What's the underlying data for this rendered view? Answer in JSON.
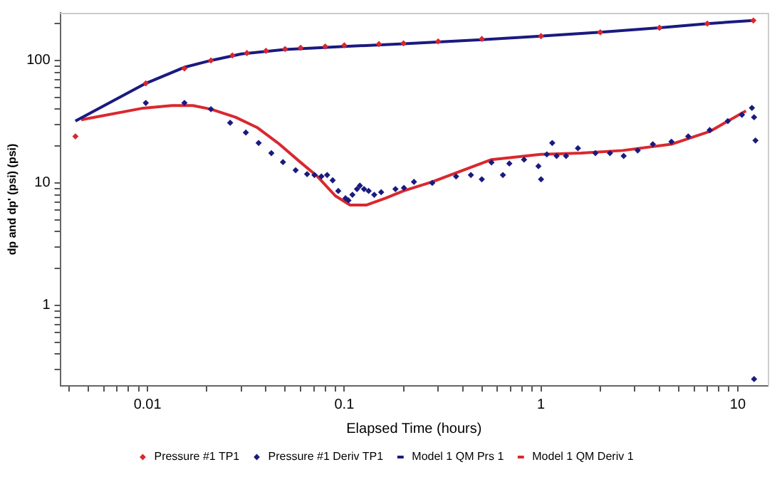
{
  "chart_data": {
    "type": "scatter",
    "xlabel": "Elapsed Time (hours)",
    "ylabel": "dp and dp' (psi) (psi)",
    "log": "xy",
    "grid": false,
    "legend": "bottom",
    "xlim": [
      0.0036,
      14.2
    ],
    "ylim": [
      0.22,
      245
    ],
    "xticks": [
      {
        "value": 0.004,
        "label": null
      },
      {
        "value": 0.005,
        "label": null
      },
      {
        "value": 0.006,
        "label": null
      },
      {
        "value": 0.007,
        "label": null
      },
      {
        "value": 0.008,
        "label": null
      },
      {
        "value": 0.009,
        "label": null
      },
      0.01,
      {
        "value": 0.02,
        "label": null
      },
      {
        "value": 0.03,
        "label": null
      },
      {
        "value": 0.04,
        "label": null
      },
      {
        "value": 0.05,
        "label": null
      },
      {
        "value": 0.06,
        "label": null
      },
      {
        "value": 0.07,
        "label": null
      },
      {
        "value": 0.08,
        "label": null
      },
      {
        "value": 0.09,
        "label": null
      },
      0.1,
      {
        "value": 0.2,
        "label": null
      },
      {
        "value": 0.3,
        "label": null
      },
      {
        "value": 0.4,
        "label": null
      },
      {
        "value": 0.5,
        "label": null
      },
      {
        "value": 0.6,
        "label": null
      },
      {
        "value": 0.7,
        "label": null
      },
      {
        "value": 0.8,
        "label": null
      },
      {
        "value": 0.9,
        "label": null
      },
      1,
      {
        "value": 2,
        "label": null
      },
      {
        "value": 3,
        "label": null
      },
      {
        "value": 4,
        "label": null
      },
      {
        "value": 5,
        "label": null
      },
      {
        "value": 6,
        "label": null
      },
      {
        "value": 7,
        "label": null
      },
      {
        "value": 8,
        "label": null
      },
      {
        "value": 9,
        "label": null
      },
      10
    ],
    "yticks": [
      {
        "value": 0.3,
        "label": null
      },
      {
        "value": 0.4,
        "label": null
      },
      {
        "value": 0.5,
        "label": null
      },
      {
        "value": 0.6,
        "label": null
      },
      {
        "value": 0.7,
        "label": null
      },
      {
        "value": 0.8,
        "label": null
      },
      {
        "value": 0.9,
        "label": null
      },
      1,
      {
        "value": 2,
        "label": null
      },
      {
        "value": 3,
        "label": null
      },
      {
        "value": 4,
        "label": null
      },
      {
        "value": 5,
        "label": null
      },
      {
        "value": 6,
        "label": null
      },
      {
        "value": 7,
        "label": null
      },
      {
        "value": 8,
        "label": null
      },
      {
        "value": 9,
        "label": null
      },
      10,
      {
        "value": 20,
        "label": null
      },
      {
        "value": 30,
        "label": null
      },
      {
        "value": 40,
        "label": null
      },
      {
        "value": 50,
        "label": null
      },
      {
        "value": 60,
        "label": null
      },
      {
        "value": 70,
        "label": null
      },
      {
        "value": 80,
        "label": null
      },
      {
        "value": 90,
        "label": null
      },
      100,
      {
        "value": 200,
        "label": null
      }
    ],
    "series": [
      {
        "name": "Pressure #1 TP1",
        "marker": "diamond",
        "color": "#d9282f",
        "x": [
          0.0043,
          0.0098,
          0.0154,
          0.021,
          0.027,
          0.032,
          0.04,
          0.05,
          0.06,
          0.08,
          0.1,
          0.15,
          0.2,
          0.3,
          0.5,
          1,
          2,
          4,
          7,
          12
        ],
        "values": [
          24,
          65,
          86,
          100,
          110,
          115,
          120,
          124,
          127,
          130,
          133,
          136,
          138,
          143,
          150,
          158,
          170,
          185,
          200,
          212
        ]
      },
      {
        "name": "Pressure #1 Deriv TP1",
        "marker": "diamond",
        "color": "#1a1a80",
        "x": [
          0.0098,
          0.0154,
          0.021,
          0.0263,
          0.0316,
          0.0367,
          0.0426,
          0.0488,
          0.0566,
          0.0647,
          0.0705,
          0.0765,
          0.0818,
          0.0873,
          0.0932,
          0.1014,
          0.105,
          0.11,
          0.116,
          0.12,
          0.126,
          0.133,
          0.142,
          0.154,
          0.182,
          0.201,
          0.226,
          0.28,
          0.37,
          0.44,
          0.5,
          0.56,
          0.64,
          0.69,
          0.82,
          0.97,
          1.0,
          1.07,
          1.14,
          1.2,
          1.34,
          1.54,
          1.89,
          2.24,
          2.63,
          3.1,
          3.7,
          4.6,
          5.6,
          7.2,
          8.9,
          10.5,
          11.8,
          12.1,
          12.3,
          12.1
        ],
        "values": [
          45,
          45,
          40,
          31,
          25.8,
          21.2,
          17.5,
          14.8,
          12.7,
          11.8,
          11.6,
          11.3,
          11.6,
          10.5,
          8.6,
          7.5,
          7.2,
          8,
          8.9,
          9.5,
          8.9,
          8.6,
          8,
          8.4,
          8.9,
          9.1,
          10.2,
          10,
          11.3,
          11.6,
          10.7,
          14.7,
          11.6,
          14.4,
          15.5,
          13.7,
          10.7,
          17.1,
          21.2,
          16.6,
          16.6,
          19.2,
          17.5,
          17.5,
          16.6,
          18.4,
          20.7,
          21.7,
          24,
          27,
          32,
          36,
          41,
          34.4,
          22.2,
          0.25
        ]
      },
      {
        "name": "Model 1 QM Prs 1",
        "type": "line",
        "marker": "none",
        "color": "#1a1a80",
        "x": [
          0.0043,
          0.0098,
          0.0154,
          0.021,
          0.03,
          0.05,
          0.1,
          0.2,
          0.5,
          1,
          2,
          4,
          7,
          12
        ],
        "values": [
          32,
          65,
          88,
          100,
          113,
          123,
          130,
          137,
          148,
          158,
          170,
          185,
          200,
          212
        ]
      },
      {
        "name": "Model 1 QM Deriv 1",
        "type": "line",
        "marker": "none",
        "color": "#d9282f",
        "x": [
          0.0046,
          0.0095,
          0.0133,
          0.017,
          0.021,
          0.028,
          0.036,
          0.046,
          0.06,
          0.073,
          0.09,
          0.107,
          0.13,
          0.162,
          0.2,
          0.28,
          0.56,
          1,
          1.6,
          2.6,
          4.6,
          7.2,
          11
        ],
        "values": [
          32.8,
          40.8,
          42.8,
          42.8,
          40,
          34.4,
          28.4,
          21.2,
          14.7,
          11.3,
          7.85,
          6.6,
          6.6,
          7.5,
          8.6,
          10.2,
          15.5,
          17.1,
          17.5,
          18.4,
          20.7,
          26.3,
          38.8
        ]
      }
    ]
  }
}
